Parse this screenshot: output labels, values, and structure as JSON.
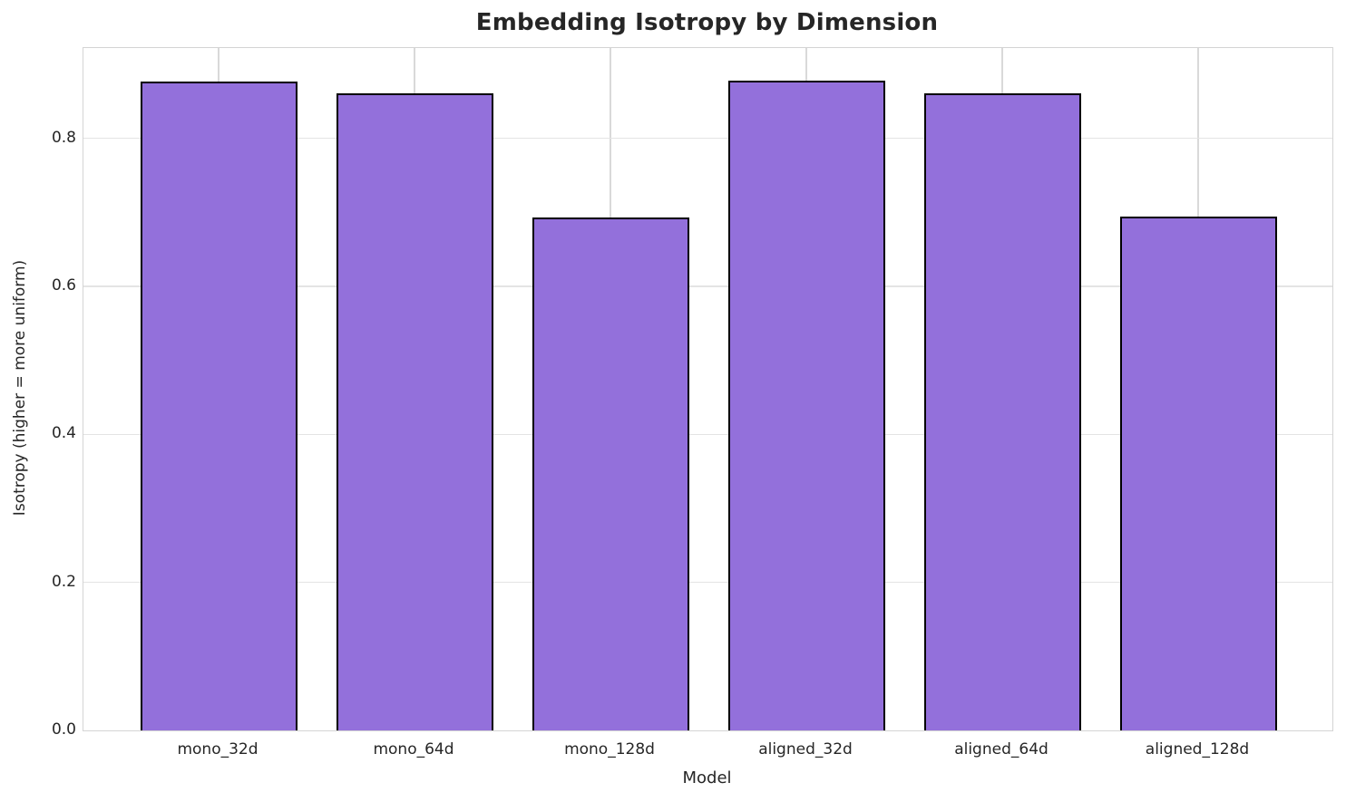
{
  "chart_data": {
    "type": "bar",
    "title": "Embedding Isotropy by Dimension",
    "xlabel": "Model",
    "ylabel": "Isotropy (higher = more uniform)",
    "categories": [
      "mono_32d",
      "mono_64d",
      "mono_128d",
      "aligned_32d",
      "aligned_64d",
      "aligned_128d"
    ],
    "values": [
      0.877,
      0.861,
      0.693,
      0.878,
      0.861,
      0.694
    ],
    "ylim": [
      0,
      0.922
    ],
    "yticks": [
      0.0,
      0.2,
      0.4,
      0.6,
      0.8
    ],
    "grid": true,
    "legend": "none",
    "bar_color": "#9370DB",
    "bar_edge_color": "#000000",
    "hgrid_color": "#e4e4e4",
    "vgrid_color": "#d9d9d9",
    "spine_color": "#d4d4d4",
    "text_color": "#262626",
    "background_color": "#ffffff"
  }
}
